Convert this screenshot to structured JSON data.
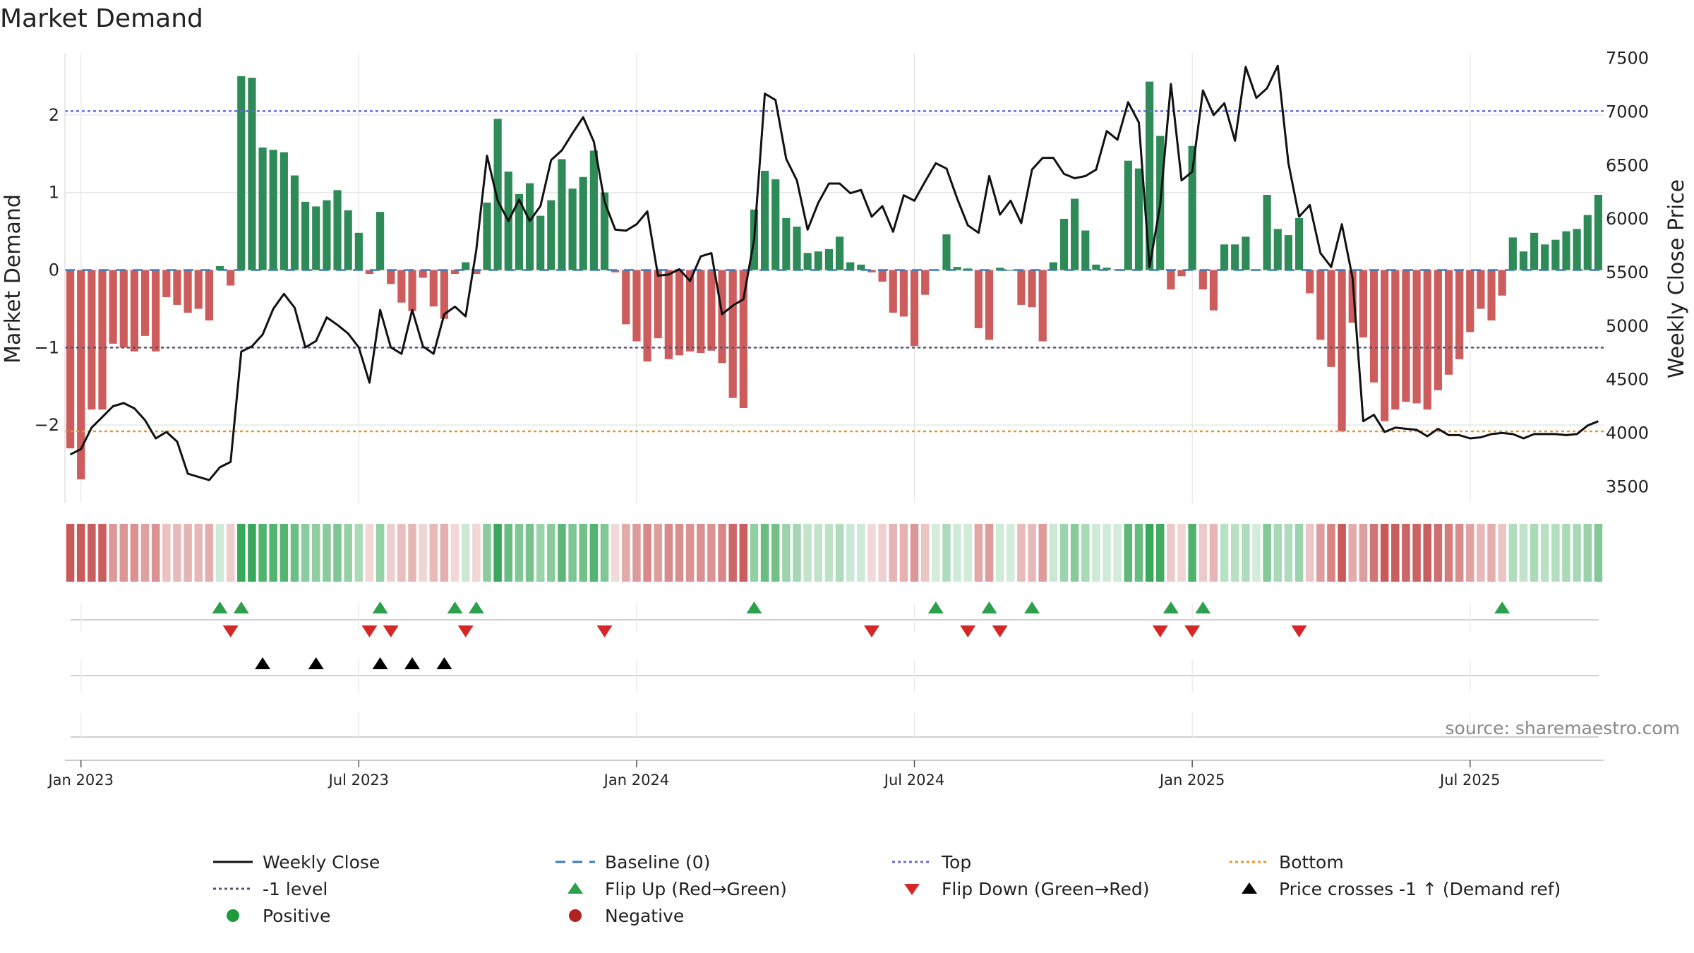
{
  "title": "Market Demand",
  "source": "source: sharemaestro.com",
  "chart_data": {
    "type": "bar",
    "title": "Market Demand",
    "ylabel_left": "Market Demand",
    "ylabel_right": "Weekly Close Price",
    "ylim_left": [
      -3.0,
      2.8
    ],
    "yticks_left": [
      -2,
      -1,
      0,
      1,
      2
    ],
    "ylim_right": [
      3350,
      7550
    ],
    "yticks_right": [
      3500,
      4000,
      4500,
      5000,
      5500,
      6000,
      6500,
      7000,
      7500
    ],
    "x_start_week": "2022-12-26",
    "x_ticks": [
      {
        "label": "Jan 2023",
        "week": 1
      },
      {
        "label": "Jul 2023",
        "week": 27
      },
      {
        "label": "Jan 2024",
        "week": 53
      },
      {
        "label": "Jul 2024",
        "week": 79
      },
      {
        "label": "Jan 2025",
        "week": 105
      },
      {
        "label": "Jul 2025",
        "week": 131
      }
    ],
    "levels": {
      "top": 2.05,
      "minus_one": -1.0,
      "bottom": -2.08,
      "baseline": 0
    },
    "demand": [
      -2.3,
      -2.7,
      -1.8,
      -1.8,
      -0.95,
      -1.0,
      -1.05,
      -0.85,
      -1.05,
      -0.35,
      -0.45,
      -0.55,
      -0.5,
      -0.65,
      0.05,
      -0.2,
      2.5,
      2.48,
      1.58,
      1.55,
      1.52,
      1.22,
      0.88,
      0.82,
      0.9,
      1.03,
      0.77,
      0.48,
      -0.05,
      0.75,
      -0.18,
      -0.42,
      -0.53,
      -0.1,
      -0.47,
      -0.63,
      -0.05,
      0.1,
      -0.05,
      0.87,
      1.95,
      1.27,
      0.98,
      1.12,
      0.7,
      0.9,
      1.43,
      1.05,
      1.2,
      1.54,
      1.0,
      -0.03,
      -0.7,
      -0.92,
      -1.18,
      -0.88,
      -1.15,
      -1.1,
      -1.05,
      -1.07,
      -1.04,
      -1.2,
      -1.65,
      -1.78,
      0.78,
      1.28,
      1.17,
      0.67,
      0.56,
      0.22,
      0.24,
      0.27,
      0.43,
      0.1,
      0.07,
      -0.03,
      -0.15,
      -0.55,
      -0.6,
      -0.98,
      -0.32,
      0.0,
      0.46,
      0.04,
      0.02,
      -0.75,
      -0.9,
      0.03,
      0.0,
      -0.45,
      -0.48,
      -0.92,
      0.1,
      0.66,
      0.92,
      0.51,
      0.07,
      0.03,
      0.01,
      1.41,
      1.31,
      2.43,
      1.73,
      -0.25,
      -0.08,
      1.6,
      -0.25,
      -0.52,
      0.33,
      0.33,
      0.43,
      0.0,
      0.97,
      0.53,
      0.45,
      0.67,
      -0.3,
      -0.9,
      -1.25,
      -2.08,
      -0.68,
      -0.87,
      -1.45,
      -1.95,
      -1.8,
      -1.7,
      -1.72,
      -1.8,
      -1.55,
      -1.35,
      -1.15,
      -0.8,
      -0.5,
      -0.65,
      -0.33,
      0.42,
      0.24,
      0.48,
      0.33,
      0.39,
      0.5,
      0.53,
      0.71,
      0.97
    ],
    "weekly_close": [
      3800,
      3850,
      4050,
      4150,
      4250,
      4280,
      4230,
      4120,
      3950,
      4010,
      3920,
      3620,
      3590,
      3560,
      3680,
      3730,
      4760,
      4810,
      4920,
      5160,
      5300,
      5170,
      4800,
      4860,
      5080,
      5010,
      4930,
      4800,
      4470,
      5150,
      4800,
      4740,
      5150,
      4810,
      4740,
      5110,
      5180,
      5090,
      5710,
      6590,
      6170,
      5980,
      6180,
      5980,
      6120,
      6550,
      6640,
      6800,
      6950,
      6720,
      6160,
      5900,
      5890,
      5950,
      6070,
      5470,
      5480,
      5530,
      5420,
      5650,
      5680,
      5110,
      5190,
      5250,
      5810,
      7170,
      7110,
      6560,
      6360,
      5900,
      6150,
      6330,
      6330,
      6240,
      6270,
      6020,
      6120,
      5880,
      6220,
      6170,
      6350,
      6520,
      6470,
      6190,
      5940,
      5870,
      6400,
      6040,
      6170,
      5960,
      6460,
      6570,
      6570,
      6420,
      6380,
      6400,
      6460,
      6820,
      6740,
      7090,
      6900,
      5550,
      6130,
      7260,
      6360,
      6440,
      7200,
      6970,
      7080,
      6730,
      7420,
      7130,
      7220,
      7430,
      6520,
      6020,
      6130,
      5680,
      5550,
      5950,
      5450,
      4110,
      4170,
      4010,
      4050,
      4040,
      4030,
      3970,
      4040,
      3980,
      3980,
      3950,
      3960,
      3990,
      4000,
      3990,
      3950,
      3990,
      3990,
      3990,
      3980,
      3990,
      4070,
      4110
    ],
    "flip_up_weeks": [
      14,
      16,
      29,
      36,
      38,
      64,
      81,
      86,
      90,
      103,
      106,
      134
    ],
    "flip_down_weeks": [
      15,
      28,
      30,
      37,
      50,
      75,
      84,
      87,
      102,
      105,
      115
    ],
    "price_cross_weeks": [
      18,
      23,
      29,
      32,
      35
    ],
    "legend": [
      {
        "key": "weekly_close",
        "label": "Weekly Close"
      },
      {
        "key": "baseline",
        "label": "Baseline (0)"
      },
      {
        "key": "top",
        "label": "Top"
      },
      {
        "key": "bottom",
        "label": "Bottom"
      },
      {
        "key": "minus_one",
        "label": "-1 level"
      },
      {
        "key": "flip_up",
        "label": "Flip Up (Red→Green)"
      },
      {
        "key": "flip_down",
        "label": "Flip Down (Green→Red)"
      },
      {
        "key": "price_cross",
        "label": "Price crosses -1 ↑ (Demand ref)"
      },
      {
        "key": "positive",
        "label": "Positive"
      },
      {
        "key": "negative",
        "label": "Negative"
      }
    ]
  },
  "colors": {
    "positive": "#2e8b57",
    "negative": "#cd5c5c",
    "price": "#111111",
    "top": "#6a6ad8",
    "bottom": "#e8962c",
    "minus_one": "#555570",
    "baseline": "#3a7bbf",
    "flip_up": "#2ca04c",
    "flip_down": "#d62728",
    "price_cross": "#000000",
    "positive_dot": "#1f9a3a",
    "negative_dot": "#b22222",
    "grid": "#e6e6e6"
  }
}
